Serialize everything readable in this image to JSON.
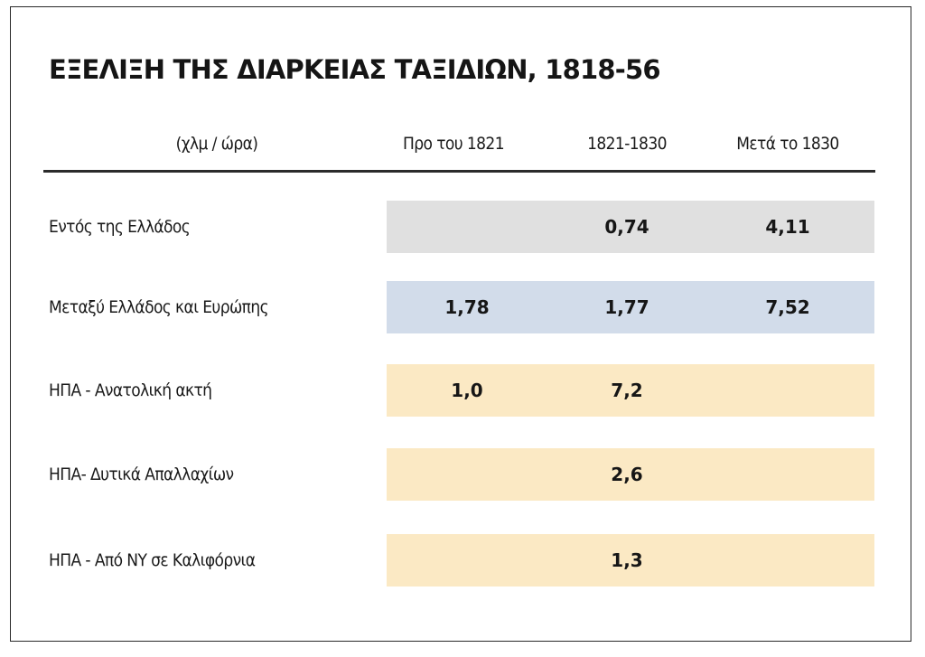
{
  "chart_data": {
    "type": "table",
    "title": "ΕΞΕΛΙΞΗ ΤΗΣ ΔΙΑΡΚΕΙΑΣ ΤΑΞΙΔΙΩΝ, 1818-56",
    "unit": "(χλμ / ώρα)",
    "columns": [
      "Προ του 1821",
      "1821-1830",
      "Μετά το 1830"
    ],
    "rows": [
      {
        "label": "Εντός της Ελλάδος",
        "values": [
          "",
          "0,74",
          "4,11"
        ],
        "color": "#e0e0e0"
      },
      {
        "label": "Μεταξύ Ελλάδος και Ευρώπης",
        "values": [
          "1,78",
          "1,77",
          "7,52"
        ],
        "color": "#d2dcea"
      },
      {
        "label": "ΗΠΑ - Ανατολική ακτή",
        "values": [
          "1,0",
          "7,2",
          ""
        ],
        "color": "#fbe9c4"
      },
      {
        "label": "ΗΠΑ- Δυτικά Απαλλαχίων",
        "values": [
          "",
          "2,6",
          ""
        ],
        "color": "#fbe9c4"
      },
      {
        "label": "ΗΠΑ - Από ΝΥ σε Καλιφόρνια",
        "values": [
          "",
          "1,3",
          ""
        ],
        "color": "#fbe9c4"
      }
    ]
  }
}
